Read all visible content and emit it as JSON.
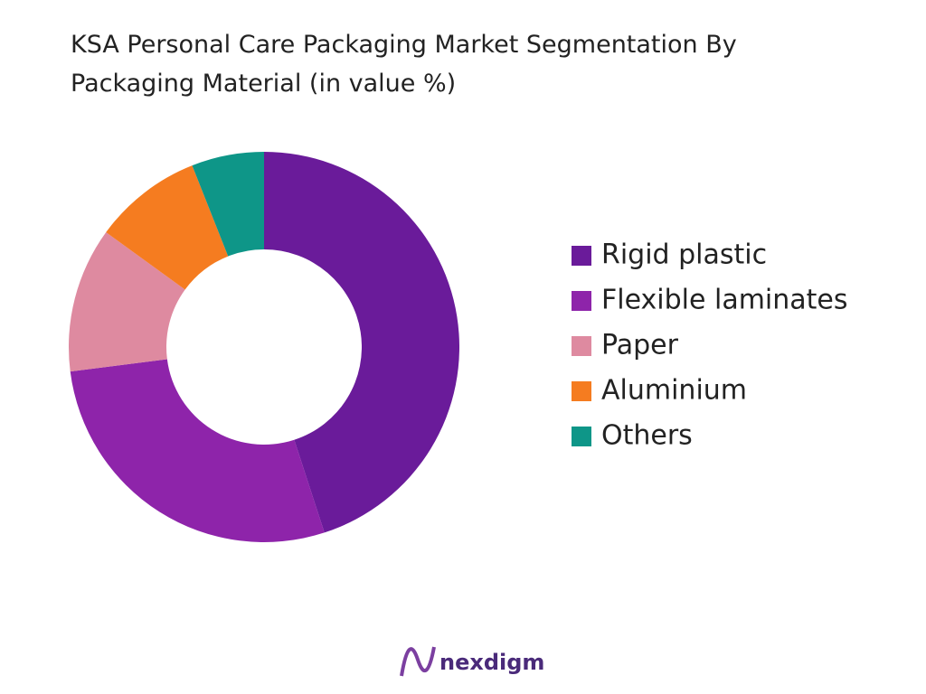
{
  "chart_data": {
    "type": "donut",
    "title": "KSA Personal Care Packaging Market Segmentation By Packaging Material (in value %)",
    "categories": [
      "Rigid plastic",
      "Flexible laminates",
      "Paper",
      "Aluminium",
      "Others"
    ],
    "values": [
      45,
      28,
      12,
      9,
      6
    ],
    "colors": [
      "#6a1b9a",
      "#8e24aa",
      "#de8aa0",
      "#f57c20",
      "#0e9688"
    ],
    "legend": "right"
  },
  "brand": "nexdigm"
}
